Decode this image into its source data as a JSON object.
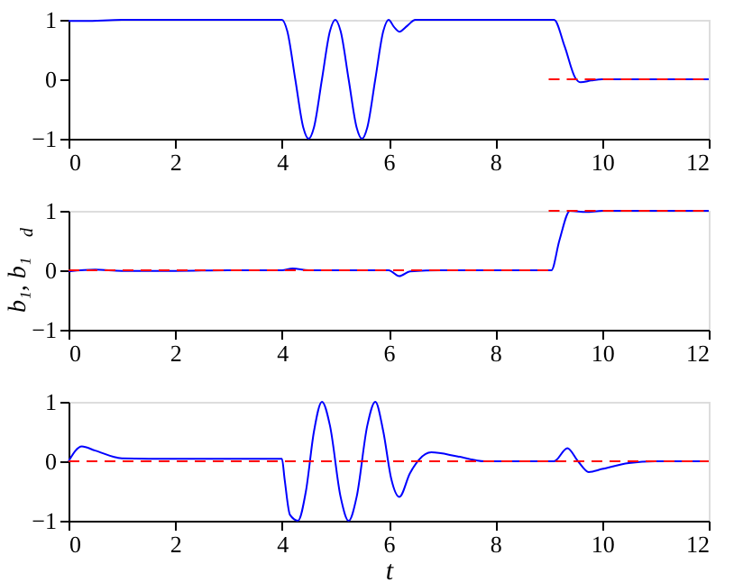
{
  "chart_data": [
    {
      "type": "line",
      "xlim": [
        0,
        12
      ],
      "ylim": [
        -1,
        1
      ],
      "xticks": [
        0,
        2,
        4,
        6,
        8,
        10,
        12
      ],
      "yticks": [
        -1,
        0,
        1
      ],
      "series": [
        {
          "color": "#0000ff",
          "line_style": "solid",
          "x": [
            0,
            0.3,
            1,
            2,
            3,
            4,
            4.1,
            4.25,
            4.4,
            4.5,
            4.6,
            4.75,
            4.9,
            5,
            5.1,
            5.25,
            5.4,
            5.5,
            5.6,
            5.75,
            5.9,
            6,
            6.1,
            6.2,
            6.35,
            6.5,
            7,
            8,
            9,
            9.1,
            9.3,
            9.5,
            9.6,
            9.8,
            10,
            11,
            12
          ],
          "values": [
            0.98,
            0.98,
            1,
            1,
            1,
            1,
            0.81,
            0,
            -0.81,
            -1,
            -0.81,
            0,
            0.81,
            1,
            0.81,
            0,
            -0.81,
            -1,
            -0.81,
            0,
            0.81,
            1,
            0.88,
            0.8,
            0.9,
            1,
            1,
            1,
            1,
            1,
            0.55,
            0.02,
            -0.05,
            -0.02,
            0,
            0,
            0
          ]
        },
        {
          "color": "#ff0000",
          "line_style": "dashed",
          "x": [
            9,
            12
          ],
          "values": [
            0,
            0
          ]
        }
      ]
    },
    {
      "type": "line",
      "xlim": [
        0,
        12
      ],
      "ylim": [
        -1,
        1
      ],
      "xticks": [
        0,
        2,
        4,
        6,
        8,
        10,
        12
      ],
      "yticks": [
        -1,
        0,
        1
      ],
      "ylabel": "b₁, b₁$_{d}$",
      "series": [
        {
          "color": "#0000ff",
          "line_style": "solid",
          "x": [
            0,
            0.5,
            1,
            2,
            3,
            4,
            4.2,
            4.5,
            5,
            6,
            6.2,
            6.4,
            7,
            8,
            9,
            9.05,
            9.2,
            9.4,
            9.7,
            10,
            11,
            12
          ],
          "values": [
            -0.02,
            0.01,
            -0.01,
            -0.01,
            0,
            0,
            0.03,
            0,
            0,
            0,
            -0.1,
            -0.02,
            0,
            0,
            0,
            0,
            0.5,
            1,
            0.98,
            1,
            1,
            1
          ]
        },
        {
          "color": "#ff0000",
          "line_style": "dashed",
          "x": [
            0,
            9
          ],
          "values": [
            0,
            0
          ]
        },
        {
          "color": "#ff0000",
          "line_style": "dashed",
          "x": [
            9,
            12
          ],
          "values": [
            1,
            1
          ]
        }
      ]
    },
    {
      "type": "line",
      "xlim": [
        0,
        12
      ],
      "ylim": [
        -1,
        1
      ],
      "xticks": [
        0,
        2,
        4,
        6,
        8,
        10,
        12
      ],
      "yticks": [
        -1,
        0,
        1
      ],
      "xlabel": "t",
      "series": [
        {
          "color": "#0000ff",
          "line_style": "solid",
          "x": [
            0,
            0.25,
            0.5,
            1,
            2,
            3,
            4,
            4.05,
            4.15,
            4.3,
            4.45,
            4.6,
            4.75,
            4.9,
            5.1,
            5.25,
            5.4,
            5.6,
            5.75,
            5.9,
            6.05,
            6.2,
            6.4,
            6.8,
            7.3,
            7.8,
            9,
            9.1,
            9.35,
            9.55,
            9.75,
            10,
            10.5,
            11,
            12
          ],
          "values": [
            0,
            0.25,
            0.18,
            0.05,
            0.04,
            0.04,
            0.04,
            -0.3,
            -0.9,
            -1,
            -0.5,
            0.5,
            1,
            0.6,
            -0.6,
            -1,
            -0.6,
            0.6,
            1,
            0.5,
            -0.3,
            -0.6,
            -0.2,
            0.15,
            0.08,
            0,
            0,
            0,
            0.22,
            0,
            -0.18,
            -0.13,
            -0.03,
            0,
            0
          ]
        },
        {
          "color": "#ff0000",
          "line_style": "dashed",
          "x": [
            0,
            12
          ],
          "values": [
            0,
            0
          ]
        }
      ]
    }
  ]
}
